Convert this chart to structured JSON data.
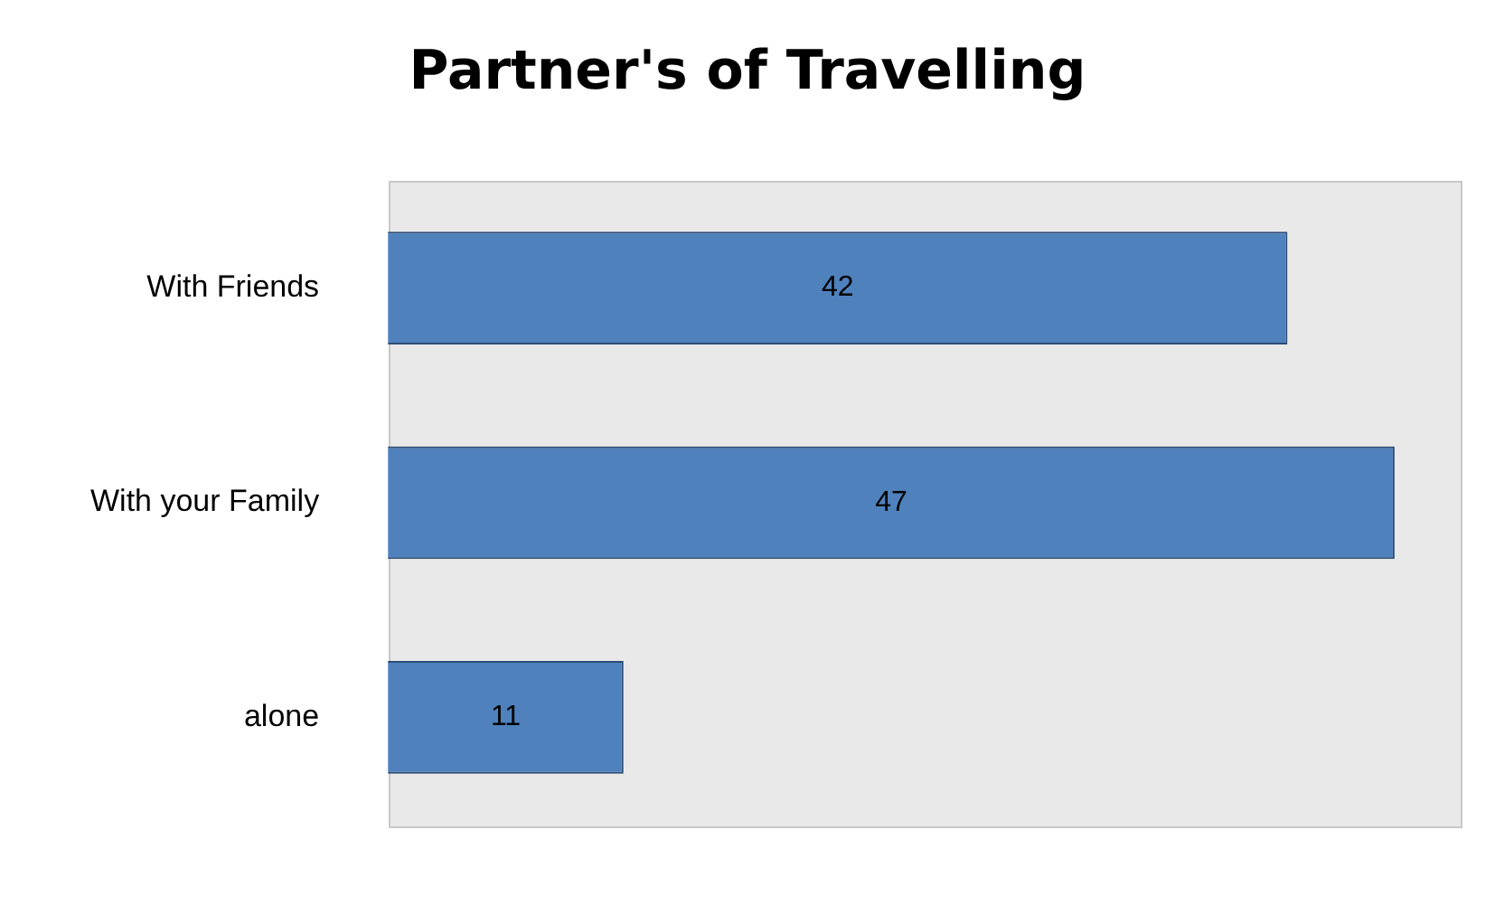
{
  "chart_data": {
    "type": "bar",
    "title": "Partner's of Travelling",
    "orientation": "horizontal",
    "categories": [
      "With Friends",
      "With your Family",
      "alone"
    ],
    "values": [
      42,
      47,
      11
    ],
    "color": "#4f81bd",
    "data_labels": true,
    "legend": false
  }
}
